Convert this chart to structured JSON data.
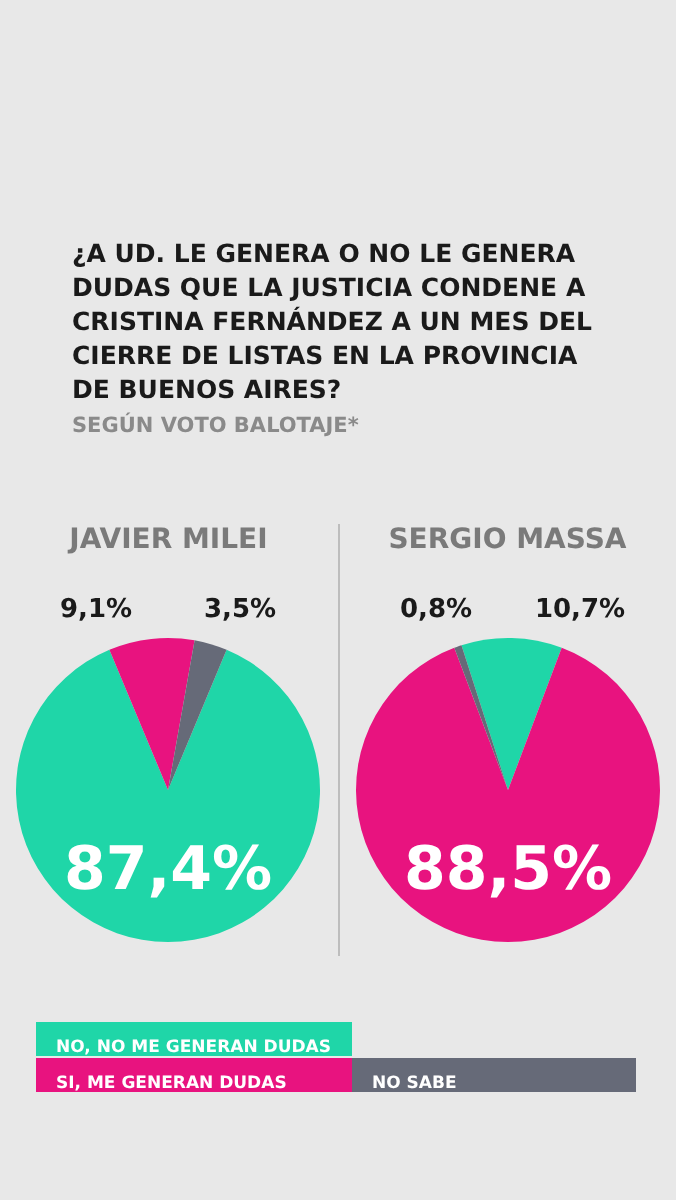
{
  "chart_data": [
    {
      "type": "other",
      "title": "¿A UD. LE GENERA O NO LE GENERA DUDAS QUE LA JUSTICIA CONDENE A CRISTINA FERNÁNDEZ A UN MES DEL CIERRE DE LISTAS EN LA PROVINCIA DE BUENOS AIRES?",
      "subtitle": "SEGÚN VOTO BALOTAJE*"
    },
    {
      "type": "pie",
      "title": "JAVIER MILEI",
      "categories": [
        "NO, NO ME GENERAN DUDAS",
        "SI, ME GENERAN DUDAS",
        "NO SABE"
      ],
      "values": [
        87.4,
        9.1,
        3.5
      ],
      "value_labels": [
        "87,4%",
        "9,1%",
        "3,5%"
      ],
      "colors": [
        "#1fd6a8",
        "#e8137f",
        "#666a78"
      ],
      "legend": "bottom"
    },
    {
      "type": "pie",
      "title": "SERGIO MASSA",
      "categories": [
        null,
        null,
        null
      ],
      "values": [
        10.7,
        88.5,
        0.8
      ],
      "value_labels": [
        "10,7%",
        "88,5%",
        "0,8%"
      ],
      "colors": [
        "#1fd6a8",
        "#e8137f",
        "#666a78"
      ]
    }
  ]
}
